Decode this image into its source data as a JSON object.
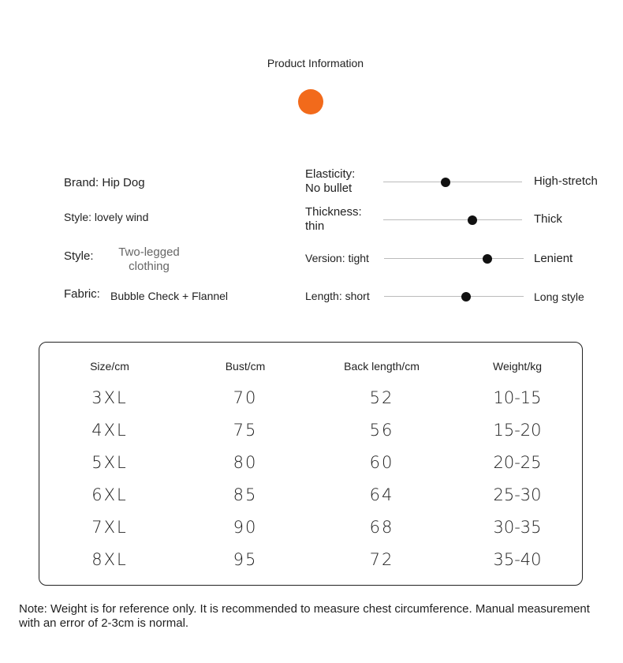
{
  "header": {
    "title": "Product Information"
  },
  "colors": {
    "accent_dot": "#f26a1b"
  },
  "attributes": {
    "brand": "Brand: Hip Dog",
    "style1": "Style: lovely wind",
    "style2_label": "Style:",
    "style2_value_line1": "Two-legged",
    "style2_value_line2": "clothing",
    "fabric_label": "Fabric:",
    "fabric_value": "Bubble Check + Flannel"
  },
  "sliders": [
    {
      "left_line1": "Elasticity:",
      "left_line2": "No bullet",
      "right": "High-stretch",
      "level": 0.45
    },
    {
      "left_line1": "Thickness:",
      "left_line2": "thin",
      "right": "Thick",
      "level": 0.64
    },
    {
      "left_line1": "Version: tight",
      "left_line2": "",
      "right": "Lenient",
      "level": 0.74
    },
    {
      "left_line1": "Length: short",
      "left_line2": "",
      "right": "Long style",
      "level": 0.59
    }
  ],
  "size_table": {
    "headers": [
      "Size/cm",
      "Bust/cm",
      "Back length/cm",
      "Weight/kg"
    ],
    "rows": [
      [
        "3XL",
        "70",
        "52",
        "10-15"
      ],
      [
        "4XL",
        "75",
        "56",
        "15-20"
      ],
      [
        "5XL",
        "80",
        "60",
        "20-25"
      ],
      [
        "6XL",
        "85",
        "64",
        "25-30"
      ],
      [
        "7XL",
        "90",
        "68",
        "30-35"
      ],
      [
        "8XL",
        "95",
        "72",
        "35-40"
      ]
    ]
  },
  "note": "Note: Weight is for reference only. It is recommended to measure chest circumference. Manual measurement with an error of 2-3cm is normal."
}
